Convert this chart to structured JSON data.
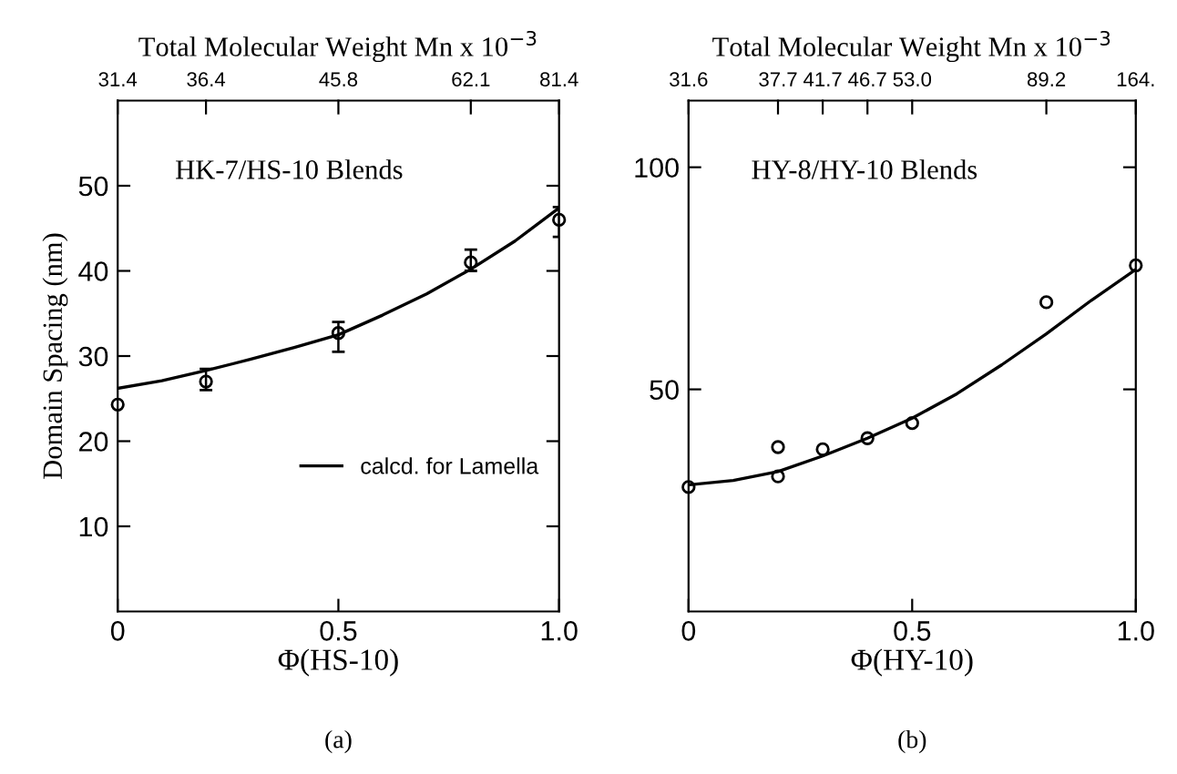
{
  "chart_data": [
    {
      "type": "scatter",
      "ylabel": "Domain Spacing (nm)",
      "xlabel": "Φ(HS-10)",
      "x2label": "Total Molecular Weight Mn x 10$^{−3}$",
      "xlim": [
        0,
        1
      ],
      "xticks": [
        0,
        0.5,
        {
          "value": 1,
          "label": "1.0"
        }
      ],
      "ylim": [
        0,
        60
      ],
      "yticks": [
        10,
        20,
        30,
        40,
        50
      ],
      "grid": false,
      "legend": "bottom right",
      "annotations": [
        "HK-7/HS-10 Blends",
        "(a)",
        "31.4",
        "36.4",
        "45.8",
        "62.1",
        "81.4"
      ],
      "series": [
        {
          "marker": "circle",
          "color": "#000000",
          "x": [
            0,
            0.2,
            0.5,
            0.8,
            1.0
          ],
          "values": [
            24.3,
            27,
            32.7,
            41,
            46
          ],
          "errors": [
            null,
            [
              26,
              28.5
            ],
            [
              30.5,
              34
            ],
            [
              40,
              42.5
            ],
            [
              44,
              47.5
            ]
          ]
        },
        {
          "type": "line",
          "name": "calcd. for Lamella",
          "marker": "none",
          "line_style": "solid",
          "color": "#000000",
          "x": [
            0,
            0.1,
            0.2,
            0.3,
            0.4,
            0.5,
            0.6,
            0.7,
            0.8,
            0.9,
            1.0
          ],
          "values": [
            26.2,
            27.1,
            28.3,
            29.6,
            31,
            32.5,
            34.8,
            37.3,
            40.2,
            43.5,
            47.4
          ]
        }
      ]
    },
    {
      "type": "scatter",
      "xlabel": "Φ(HY-10)",
      "x2label": "Total Molecular Weight Mn x 10$^{−3}$",
      "xlim": [
        0,
        1
      ],
      "xticks": [
        0,
        0.5,
        {
          "value": 1,
          "label": "1.0"
        }
      ],
      "ylim": [
        0,
        115
      ],
      "yticks": [
        50,
        100
      ],
      "grid": false,
      "annotations": [
        "HY-8/HY-10 Blends",
        "(b)",
        "31.6",
        "37.7",
        "41.7",
        "46.7",
        "53.0",
        "89.2",
        "164."
      ],
      "series": [
        {
          "marker": "circle",
          "color": "#000000",
          "x": [
            0,
            0.2,
            0.2,
            0.3,
            0.4,
            0.5,
            0.8,
            1.0
          ],
          "values": [
            28,
            37,
            30.4,
            36.5,
            39,
            42.4,
            69.6,
            77.9
          ]
        },
        {
          "type": "line",
          "marker": "none",
          "line_style": "solid",
          "color": "#000000",
          "x": [
            0,
            0.1,
            0.2,
            0.3,
            0.4,
            0.5,
            0.6,
            0.7,
            0.8,
            0.9,
            1.0
          ],
          "values": [
            28.5,
            29.5,
            31.5,
            35,
            39,
            43.5,
            49,
            55.5,
            62.5,
            70,
            77
          ]
        }
      ]
    }
  ]
}
